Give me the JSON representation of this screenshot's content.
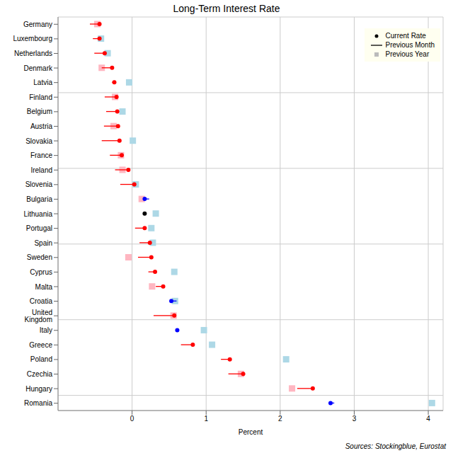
{
  "chart_data": {
    "type": "dumbbell",
    "title": "Long-Term Interest Rate",
    "x_label": "Percent",
    "source": "Sources: Stockingblue, Eurostat",
    "orientation": "horizontal",
    "grid": true,
    "legend": "top-right",
    "xlim": [
      -1,
      4.2
    ],
    "xticks": [
      0,
      1,
      2,
      3,
      4
    ],
    "categories": [
      "Germany",
      "Luxembourg",
      "Netherlands",
      "Denmark",
      "Latvia",
      "Finland",
      "Belgium",
      "Austria",
      "Slovakia",
      "France",
      "Ireland",
      "Slovenia",
      "Bulgaria",
      "Lithuania",
      "Portugal",
      "Spain",
      "Sweden",
      "Cyprus",
      "Malta",
      "Croatia",
      "United Kingdom",
      "Italy",
      "Greece",
      "Poland",
      "Czechia",
      "Hungary",
      "Romania"
    ],
    "series": [
      {
        "name": "Current Rate",
        "marker": "circle",
        "values": [
          -0.44,
          -0.44,
          -0.37,
          -0.27,
          -0.24,
          -0.21,
          -0.2,
          -0.19,
          -0.17,
          -0.14,
          -0.05,
          0.03,
          0.17,
          0.17,
          0.17,
          0.24,
          0.26,
          0.31,
          0.42,
          0.53,
          0.57,
          0.61,
          0.82,
          1.32,
          1.5,
          2.44,
          2.68
        ],
        "colors": [
          "#ff0000",
          "#ff0000",
          "#ff0000",
          "#ff0000",
          "#ff0000",
          "#ff0000",
          "#ff0000",
          "#ff0000",
          "#ff0000",
          "#ff0000",
          "#ff0000",
          "#ff0000",
          "#0000ff",
          "#000000",
          "#ff0000",
          "#ff0000",
          "#ff0000",
          "#ff0000",
          "#ff0000",
          "#0000ff",
          "#ff0000",
          "#0000ff",
          "#ff0000",
          "#ff0000",
          "#ff0000",
          "#ff0000",
          "#0000ff"
        ]
      },
      {
        "name": "Previous Month",
        "line_style": "solid",
        "values": [
          -0.57,
          -0.53,
          -0.51,
          -0.41,
          -0.27,
          -0.37,
          -0.35,
          -0.38,
          -0.41,
          -0.3,
          -0.23,
          -0.16,
          0.23,
          0.17,
          0.04,
          0.1,
          0.08,
          0.22,
          0.32,
          0.6,
          0.29,
          0.62,
          0.66,
          1.2,
          1.3,
          2.23,
          2.73
        ],
        "colors": [
          "#ff0000",
          "#ff0000",
          "#ff0000",
          "#ff0000",
          "#ff0000",
          "#ff0000",
          "#ff0000",
          "#ff0000",
          "#ff0000",
          "#ff0000",
          "#ff0000",
          "#ff0000",
          "#0000ff",
          "#000000",
          "#ff0000",
          "#ff0000",
          "#ff0000",
          "#ff0000",
          "#ff0000",
          "#0000ff",
          "#ff0000",
          "#0000ff",
          "#ff0000",
          "#ff0000",
          "#ff0000",
          "#ff0000",
          "#0000ff"
        ]
      },
      {
        "name": "Previous Year",
        "marker": "square",
        "values": [
          -0.47,
          -0.42,
          -0.33,
          -0.41,
          -0.04,
          -0.23,
          -0.13,
          -0.25,
          0.01,
          -0.15,
          -0.13,
          0.05,
          0.13,
          0.32,
          0.26,
          0.28,
          -0.05,
          0.57,
          0.27,
          0.58,
          0.56,
          0.97,
          1.08,
          2.08,
          1.47,
          2.16,
          4.05
        ],
        "colors": [
          "#ffb6c1",
          "#add8e6",
          "#add8e6",
          "#ffb6c1",
          "#add8e6",
          "#ffb6c1",
          "#add8e6",
          "#ffb6c1",
          "#add8e6",
          "#ffb6c1",
          "#ffb6c1",
          "#add8e6",
          "#ffb6c1",
          "#add8e6",
          "#add8e6",
          "#add8e6",
          "#ffb6c1",
          "#add8e6",
          "#ffb6c1",
          "#add8e6",
          "#ffb6c1",
          "#add8e6",
          "#add8e6",
          "#add8e6",
          "#ffb6c1",
          "#ffb6c1",
          "#add8e6"
        ]
      }
    ]
  }
}
